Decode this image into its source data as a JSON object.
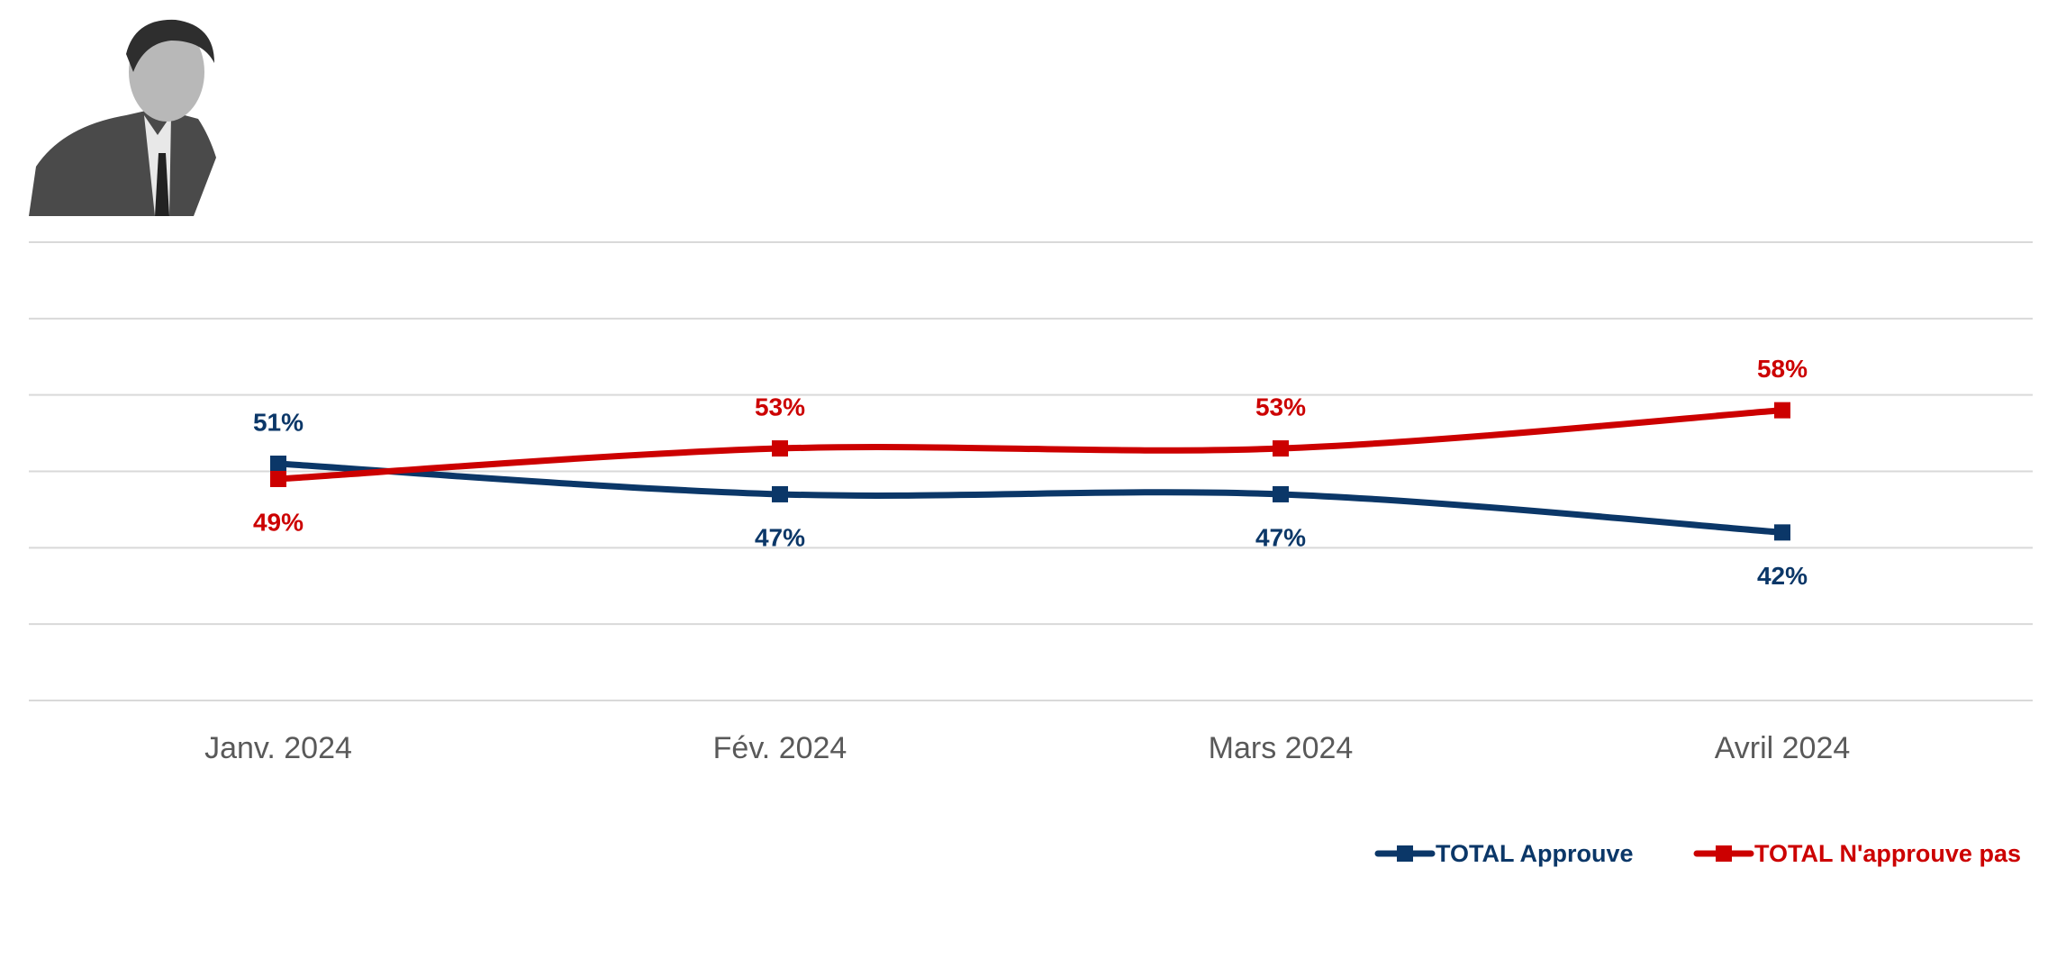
{
  "chart_data": {
    "type": "line",
    "categories": [
      "Janv. 2024",
      "Fév. 2024",
      "Mars 2024",
      "Avril 2024"
    ],
    "series": [
      {
        "name": "TOTAL Approuve",
        "color": "#0b3768",
        "values": [
          51,
          47,
          47,
          42
        ],
        "value_labels": [
          "51%",
          "47%",
          "47%",
          "42%"
        ]
      },
      {
        "name": "TOTAL N'approuve pas",
        "color": "#cc0000",
        "values": [
          49,
          53,
          53,
          58
        ],
        "value_labels": [
          "49%",
          "53%",
          "53%",
          "58%"
        ]
      }
    ],
    "ylim": [
      20,
      80
    ],
    "yticks": [
      20,
      30,
      40,
      50,
      60,
      70,
      80
    ],
    "grid": true,
    "legend": "bottom-right"
  }
}
